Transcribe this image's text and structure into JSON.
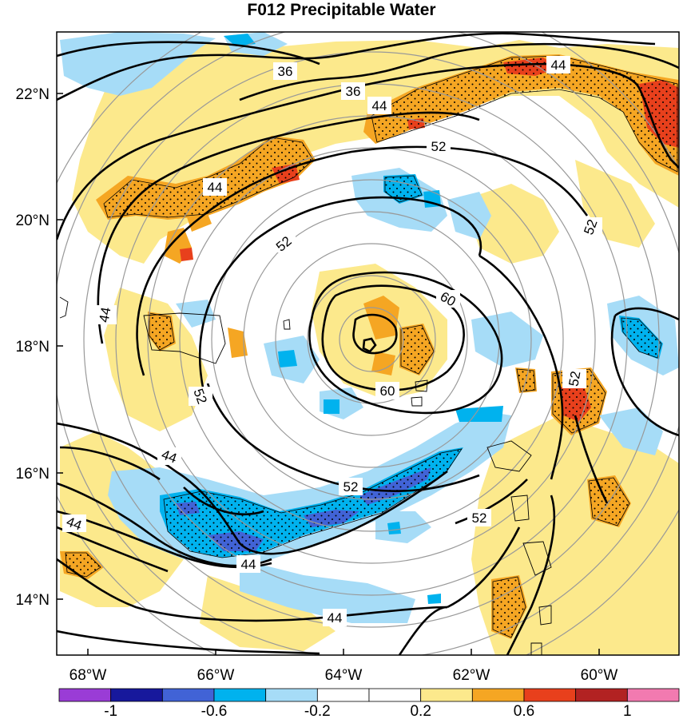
{
  "title": "F012 Precipitable Water",
  "map": {
    "lat_labels": [
      "22°N",
      "20°N",
      "18°N",
      "16°N",
      "14°N"
    ],
    "lon_labels": [
      "68°W",
      "66°W",
      "64°W",
      "62°W",
      "60°W"
    ],
    "contour_labels": [
      "36",
      "36",
      "44",
      "44",
      "44",
      "44",
      "44",
      "44",
      "44",
      "52",
      "52",
      "52",
      "52",
      "52",
      "52",
      "52",
      "60",
      "60"
    ]
  },
  "colorbar": {
    "labels": [
      "-1",
      "-0.6",
      "-0.2",
      "0.2",
      "0.6",
      "1"
    ],
    "colors": [
      "#9a3cd6",
      "#17189c",
      "#4163d6",
      "#00b2ee",
      "#a6dcf7",
      "#ffffff",
      "#ffffff",
      "#fce98c",
      "#f5a623",
      "#e8401c",
      "#b22222",
      "#f27ab0"
    ]
  },
  "colors": {
    "tan_light": "#fce98c",
    "orange": "#f5a623",
    "red": "#e8401c",
    "dark_red": "#c82a1e",
    "light_blue": "#a6dcf7",
    "blue": "#00b2ee",
    "mid_blue": "#4163d6",
    "dark_blue": "#3b2fb6",
    "range_ring": "#999999",
    "contour": "#000000"
  }
}
